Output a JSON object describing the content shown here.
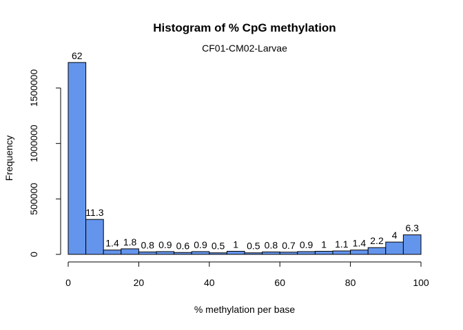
{
  "chart_data": {
    "type": "bar",
    "title": "Histogram of % CpG methylation",
    "subtitle": "CF01-CM02-Larvae",
    "xlabel": "% methylation per base",
    "ylabel": "Frequency",
    "xlim": [
      0,
      100
    ],
    "ylim": [
      0,
      1750000
    ],
    "x_ticks": [
      0,
      20,
      40,
      60,
      80,
      100
    ],
    "y_ticks": [
      0,
      500000,
      1000000,
      1500000
    ],
    "bin_width": 5,
    "bins": [
      {
        "start": 0,
        "end": 5,
        "count": 1730000,
        "label": "62"
      },
      {
        "start": 5,
        "end": 10,
        "count": 315000,
        "label": "11.3"
      },
      {
        "start": 10,
        "end": 15,
        "count": 39000,
        "label": "1.4"
      },
      {
        "start": 15,
        "end": 20,
        "count": 50000,
        "label": "1.8"
      },
      {
        "start": 20,
        "end": 25,
        "count": 22000,
        "label": "0.8"
      },
      {
        "start": 25,
        "end": 30,
        "count": 25000,
        "label": "0.9"
      },
      {
        "start": 30,
        "end": 35,
        "count": 17000,
        "label": "0.6"
      },
      {
        "start": 35,
        "end": 40,
        "count": 25000,
        "label": "0.9"
      },
      {
        "start": 40,
        "end": 45,
        "count": 14000,
        "label": "0.5"
      },
      {
        "start": 45,
        "end": 50,
        "count": 28000,
        "label": "1"
      },
      {
        "start": 50,
        "end": 55,
        "count": 14000,
        "label": "0.5"
      },
      {
        "start": 55,
        "end": 60,
        "count": 22000,
        "label": "0.8"
      },
      {
        "start": 60,
        "end": 65,
        "count": 20000,
        "label": "0.7"
      },
      {
        "start": 65,
        "end": 70,
        "count": 25000,
        "label": "0.9"
      },
      {
        "start": 70,
        "end": 75,
        "count": 28000,
        "label": "1"
      },
      {
        "start": 75,
        "end": 80,
        "count": 31000,
        "label": "1.1"
      },
      {
        "start": 80,
        "end": 85,
        "count": 39000,
        "label": "1.4"
      },
      {
        "start": 85,
        "end": 90,
        "count": 61000,
        "label": "2.2"
      },
      {
        "start": 90,
        "end": 95,
        "count": 111000,
        "label": "4"
      },
      {
        "start": 95,
        "end": 100,
        "count": 176000,
        "label": "6.3"
      }
    ],
    "bar_color": "#6495ED",
    "grid": false,
    "legend": "none"
  }
}
